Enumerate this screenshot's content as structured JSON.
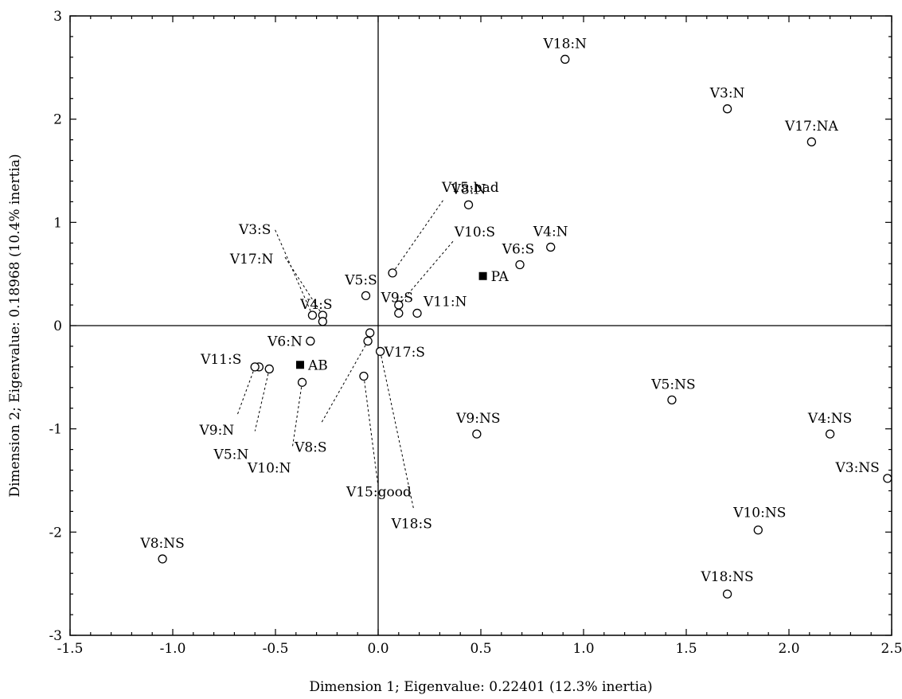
{
  "chart_data": {
    "type": "scatter",
    "xlabel": "Dimension 1; Eigenvalue: 0.22401 (12.3% inertia)",
    "ylabel": "Dimension 2; Eigenvalue: 0.18968 (10.4% inertia)",
    "xlim": [
      -1.5,
      2.5
    ],
    "ylim": [
      -3,
      3
    ],
    "x_ticks": [
      "-1.5",
      "-1.0",
      "-0.5",
      "0.0",
      "0.5",
      "1.0",
      "1.5",
      "2.0",
      "2.5"
    ],
    "y_ticks": [
      "3",
      "2",
      "1",
      "0",
      "-1",
      "-2",
      "-3"
    ],
    "grid": false,
    "reference_lines": [
      0,
      0
    ],
    "points": [
      {
        "label": "V18:N",
        "x": 0.91,
        "y": 2.58,
        "marker": "circle"
      },
      {
        "label": "V3:N",
        "x": 1.7,
        "y": 2.1,
        "marker": "circle"
      },
      {
        "label": "V17:NA",
        "x": 2.11,
        "y": 1.78,
        "marker": "circle"
      },
      {
        "label": "V8:N",
        "x": 0.44,
        "y": 1.17,
        "marker": "circle"
      },
      {
        "label": "V4:N",
        "x": 0.84,
        "y": 0.76,
        "marker": "circle"
      },
      {
        "label": "V6:S",
        "x": 0.69,
        "y": 0.59,
        "marker": "circle"
      },
      {
        "label": "V15:bad",
        "x": 0.07,
        "y": 0.51,
        "marker": "circle"
      },
      {
        "label": "V10:S",
        "x": 0.1,
        "y": 0.2,
        "marker": "circle"
      },
      {
        "label": "V5:S",
        "x": -0.06,
        "y": 0.29,
        "marker": "circle"
      },
      {
        "label": "V9:S",
        "x": 0.1,
        "y": 0.12,
        "marker": "circle"
      },
      {
        "label": "V11:N",
        "x": 0.19,
        "y": 0.12,
        "marker": "circle"
      },
      {
        "label": "V3:S",
        "x": -0.32,
        "y": 0.1,
        "marker": "circle"
      },
      {
        "label": "V17:N",
        "x": -0.27,
        "y": 0.1,
        "marker": "circle"
      },
      {
        "label": "V4:S",
        "x": -0.27,
        "y": 0.04,
        "marker": "circle"
      },
      {
        "label": "V6:N",
        "x": -0.33,
        "y": -0.15,
        "marker": "circle"
      },
      {
        "label": "V17:S",
        "x": -0.04,
        "y": -0.07,
        "marker": "circle"
      },
      {
        "label": "V8:S",
        "x": -0.05,
        "y": -0.15,
        "marker": "circle"
      },
      {
        "label": "V18:S",
        "x": 0.01,
        "y": -0.25,
        "marker": "circle"
      },
      {
        "label": "V11:S",
        "x": -0.58,
        "y": -0.4,
        "marker": "circle"
      },
      {
        "label": "V9:N",
        "x": -0.6,
        "y": -0.4,
        "marker": "circle"
      },
      {
        "label": "V5:N",
        "x": -0.53,
        "y": -0.42,
        "marker": "circle"
      },
      {
        "label": "V10:N",
        "x": -0.37,
        "y": -0.55,
        "marker": "circle"
      },
      {
        "label": "V15:good",
        "x": -0.07,
        "y": -0.49,
        "marker": "circle"
      },
      {
        "label": "V9:NS",
        "x": 0.48,
        "y": -1.05,
        "marker": "circle"
      },
      {
        "label": "V5:NS",
        "x": 1.43,
        "y": -0.72,
        "marker": "circle"
      },
      {
        "label": "V4:NS",
        "x": 2.2,
        "y": -1.05,
        "marker": "circle"
      },
      {
        "label": "V3:NS",
        "x": 2.48,
        "y": -1.48,
        "marker": "circle"
      },
      {
        "label": "V10:NS",
        "x": 1.85,
        "y": -1.98,
        "marker": "circle"
      },
      {
        "label": "V18:NS",
        "x": 1.7,
        "y": -2.6,
        "marker": "circle"
      },
      {
        "label": "V8:NS",
        "x": -1.05,
        "y": -2.26,
        "marker": "circle"
      },
      {
        "label": "PA",
        "x": 0.51,
        "y": 0.48,
        "marker": "square"
      },
      {
        "label": "AB",
        "x": -0.38,
        "y": -0.38,
        "marker": "square"
      }
    ]
  }
}
